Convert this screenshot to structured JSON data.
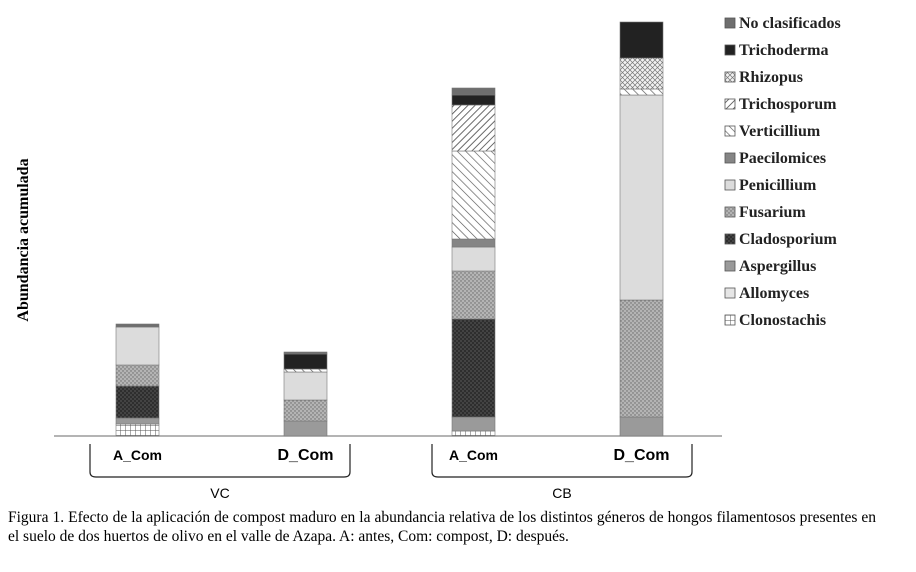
{
  "chart_data": {
    "type": "bar",
    "stacked": true,
    "ylabel": "Abundancia acumulada",
    "categories": [
      "A_Com",
      "D_Com",
      "A_Com",
      "D_Com"
    ],
    "groups": [
      {
        "label": "VC",
        "categories": [
          0,
          1
        ]
      },
      {
        "label": "CB",
        "categories": [
          2,
          3
        ]
      }
    ],
    "ylim": [
      0,
      418
    ],
    "legend_position": "right",
    "series": [
      {
        "name": "Clonostachis",
        "values": [
          12,
          0,
          5,
          0
        ],
        "pattern": "grid",
        "color": "#ffffff"
      },
      {
        "name": "Allomyces",
        "values": [
          0,
          0,
          0,
          0
        ],
        "pattern": "light",
        "color": "#e6e6e6"
      },
      {
        "name": "Aspergillus",
        "values": [
          6,
          15,
          14,
          19
        ],
        "pattern": "solid",
        "color": "#9a9a9a"
      },
      {
        "name": "Cladosporium",
        "values": [
          32,
          0,
          98,
          0
        ],
        "pattern": "dark-dots",
        "color": "#3a3a3a"
      },
      {
        "name": "Fusarium",
        "values": [
          21,
          21,
          48,
          117
        ],
        "pattern": "dots",
        "color": "#aaaaaa"
      },
      {
        "name": "Penicillium",
        "values": [
          38,
          28,
          24,
          205
        ],
        "pattern": "light",
        "color": "#dcdcdc"
      },
      {
        "name": "Paecilomices",
        "values": [
          0,
          0,
          8,
          0
        ],
        "pattern": "solid",
        "color": "#858585"
      },
      {
        "name": "Verticillium",
        "values": [
          0,
          3,
          88,
          6
        ],
        "pattern": "diag-fwd",
        "color": "#ffffff"
      },
      {
        "name": "Trichosporum",
        "values": [
          0,
          0,
          46,
          0
        ],
        "pattern": "diag-back",
        "color": "#ffffff"
      },
      {
        "name": "Rhizopus",
        "values": [
          0,
          0,
          0,
          31
        ],
        "pattern": "crosshatch",
        "color": "#ffffff"
      },
      {
        "name": "Trichoderma",
        "values": [
          0,
          15,
          10,
          36
        ],
        "pattern": "black",
        "color": "#222222"
      },
      {
        "name": "No clasificados",
        "values": [
          3,
          2,
          7,
          0
        ],
        "pattern": "solid",
        "color": "#6e6e6e"
      }
    ],
    "legend_order": [
      "No clasificados",
      "Trichoderma",
      "Rhizopus",
      "Trichosporum",
      "Verticillium",
      "Paecilomices",
      "Penicillium",
      "Fusarium",
      "Cladosporium",
      "Aspergillus",
      "Allomyces",
      "Clonostachis"
    ]
  },
  "caption": "Figura 1. Efecto de la aplicación de compost maduro en la abundancia relativa de los distintos géneros de hongos filamentosos presentes en el suelo de dos huertos de olivo en el valle de Azapa. A: antes, Com: compost, D: después."
}
